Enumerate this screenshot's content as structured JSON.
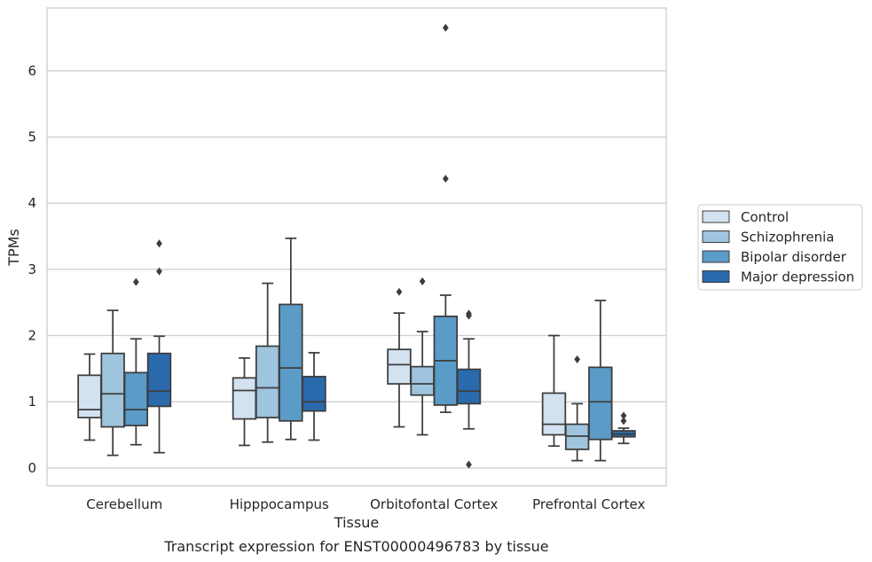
{
  "chart_data": {
    "type": "boxplot",
    "title": "",
    "caption": "Transcript expression for ENST00000496783 by tissue",
    "xlabel": "Tissue",
    "ylabel": "TPMs",
    "ylim": [
      -0.27,
      6.95
    ],
    "yticks": [
      0,
      1,
      2,
      3,
      4,
      5,
      6
    ],
    "grid": true,
    "legend_position": "right",
    "categories": [
      "Cerebellum",
      "Hipppocampus",
      "Orbitofontal Cortex",
      "Prefrontal Cortex"
    ],
    "series": [
      {
        "name": "Control",
        "color": "#d3e2f1",
        "boxes": [
          {
            "whislo": 0.42,
            "q1": 0.76,
            "med": 0.88,
            "q3": 1.4,
            "whishi": 1.72,
            "fliers": []
          },
          {
            "whislo": 0.34,
            "q1": 0.74,
            "med": 1.17,
            "q3": 1.36,
            "whishi": 1.66,
            "fliers": []
          },
          {
            "whislo": 0.62,
            "q1": 1.27,
            "med": 1.56,
            "q3": 1.79,
            "whishi": 2.34,
            "fliers": [
              2.66
            ]
          },
          {
            "whislo": 0.33,
            "q1": 0.5,
            "med": 0.66,
            "q3": 1.13,
            "whishi": 2.0,
            "fliers": []
          }
        ]
      },
      {
        "name": "Schizophrenia",
        "color": "#9ec4de",
        "boxes": [
          {
            "whislo": 0.19,
            "q1": 0.62,
            "med": 1.12,
            "q3": 1.73,
            "whishi": 2.38,
            "fliers": []
          },
          {
            "whislo": 0.39,
            "q1": 0.76,
            "med": 1.21,
            "q3": 1.84,
            "whishi": 2.79,
            "fliers": []
          },
          {
            "whislo": 0.5,
            "q1": 1.1,
            "med": 1.27,
            "q3": 1.53,
            "whishi": 2.06,
            "fliers": [
              2.82
            ]
          },
          {
            "whislo": 0.11,
            "q1": 0.28,
            "med": 0.48,
            "q3": 0.66,
            "whishi": 0.97,
            "fliers": [
              1.64
            ]
          }
        ]
      },
      {
        "name": "Bipolar disorder",
        "color": "#5b9bc8",
        "boxes": [
          {
            "whislo": 0.35,
            "q1": 0.64,
            "med": 0.88,
            "q3": 1.44,
            "whishi": 1.95,
            "fliers": [
              2.81
            ]
          },
          {
            "whislo": 0.43,
            "q1": 0.71,
            "med": 1.51,
            "q3": 2.47,
            "whishi": 3.47,
            "fliers": []
          },
          {
            "whislo": 0.84,
            "q1": 0.95,
            "med": 1.62,
            "q3": 2.29,
            "whishi": 2.61,
            "fliers": [
              4.37,
              6.65
            ]
          },
          {
            "whislo": 0.11,
            "q1": 0.43,
            "med": 1.0,
            "q3": 1.52,
            "whishi": 2.53,
            "fliers": []
          }
        ]
      },
      {
        "name": "Major depression",
        "color": "#2a6aad",
        "boxes": [
          {
            "whislo": 0.23,
            "q1": 0.93,
            "med": 1.16,
            "q3": 1.73,
            "whishi": 1.99,
            "fliers": [
              2.97,
              3.39
            ]
          },
          {
            "whislo": 0.42,
            "q1": 0.86,
            "med": 1.0,
            "q3": 1.38,
            "whishi": 1.74,
            "fliers": []
          },
          {
            "whislo": 0.59,
            "q1": 0.97,
            "med": 1.16,
            "q3": 1.49,
            "whishi": 1.95,
            "fliers": [
              0.05,
              2.3,
              2.33
            ]
          },
          {
            "whislo": 0.37,
            "q1": 0.47,
            "med": 0.51,
            "q3": 0.56,
            "whishi": 0.6,
            "fliers": [
              0.71,
              0.79
            ]
          }
        ]
      }
    ]
  }
}
